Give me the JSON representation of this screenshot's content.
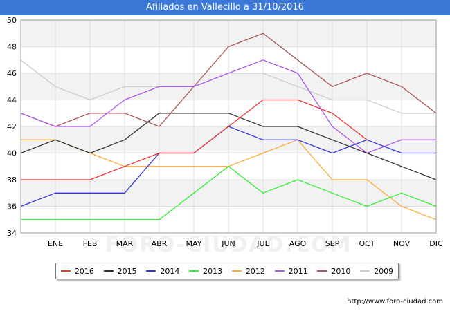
{
  "title": "Afiliados en Vallecillo a 31/10/2016",
  "watermark": "FORO-CIUDAD.COM",
  "footer_url": "http://www.foro-ciudad.com",
  "chart_data": {
    "type": "line",
    "title": "Afiliados en Vallecillo a 31/10/2016",
    "x": [
      "",
      "ENE",
      "FEB",
      "MAR",
      "ABR",
      "MAY",
      "JUN",
      "JUL",
      "AGO",
      "SEP",
      "OCT",
      "NOV",
      "DIC"
    ],
    "ylim": [
      34,
      50
    ],
    "yticks": [
      34,
      36,
      38,
      40,
      42,
      44,
      46,
      48,
      50
    ],
    "grid": true,
    "legend_position": "bottom",
    "series": [
      {
        "name": "2016",
        "color": "#ee3333",
        "values": [
          38,
          38,
          38,
          39,
          40,
          40,
          42,
          44,
          44,
          43,
          41,
          null,
          null
        ]
      },
      {
        "name": "2015",
        "color": "#333333",
        "values": [
          40,
          41,
          40,
          41,
          43,
          43,
          43,
          42,
          42,
          41,
          40,
          39,
          38
        ]
      },
      {
        "name": "2014",
        "color": "#3333dd",
        "values": [
          36,
          37,
          37,
          37,
          40,
          40,
          42,
          41,
          41,
          40,
          41,
          40,
          40
        ]
      },
      {
        "name": "2013",
        "color": "#33ee33",
        "values": [
          35,
          35,
          35,
          35,
          35,
          37,
          39,
          37,
          38,
          37,
          36,
          37,
          36
        ]
      },
      {
        "name": "2012",
        "color": "#ffaa33",
        "values": [
          41,
          41,
          40,
          39,
          39,
          39,
          39,
          40,
          41,
          38,
          38,
          36,
          35
        ]
      },
      {
        "name": "2011",
        "color": "#aa55ee",
        "values": [
          43,
          42,
          42,
          44,
          45,
          45,
          46,
          47,
          46,
          42,
          40,
          41,
          41
        ]
      },
      {
        "name": "2010",
        "color": "#aa5555",
        "values": [
          43,
          42,
          43,
          43,
          42,
          45,
          48,
          49,
          47,
          45,
          46,
          45,
          43
        ]
      },
      {
        "name": "2009",
        "color": "#cccccc",
        "values": [
          47,
          45,
          44,
          45,
          45,
          45,
          46,
          46,
          45,
          44,
          44,
          43,
          43
        ]
      }
    ]
  }
}
